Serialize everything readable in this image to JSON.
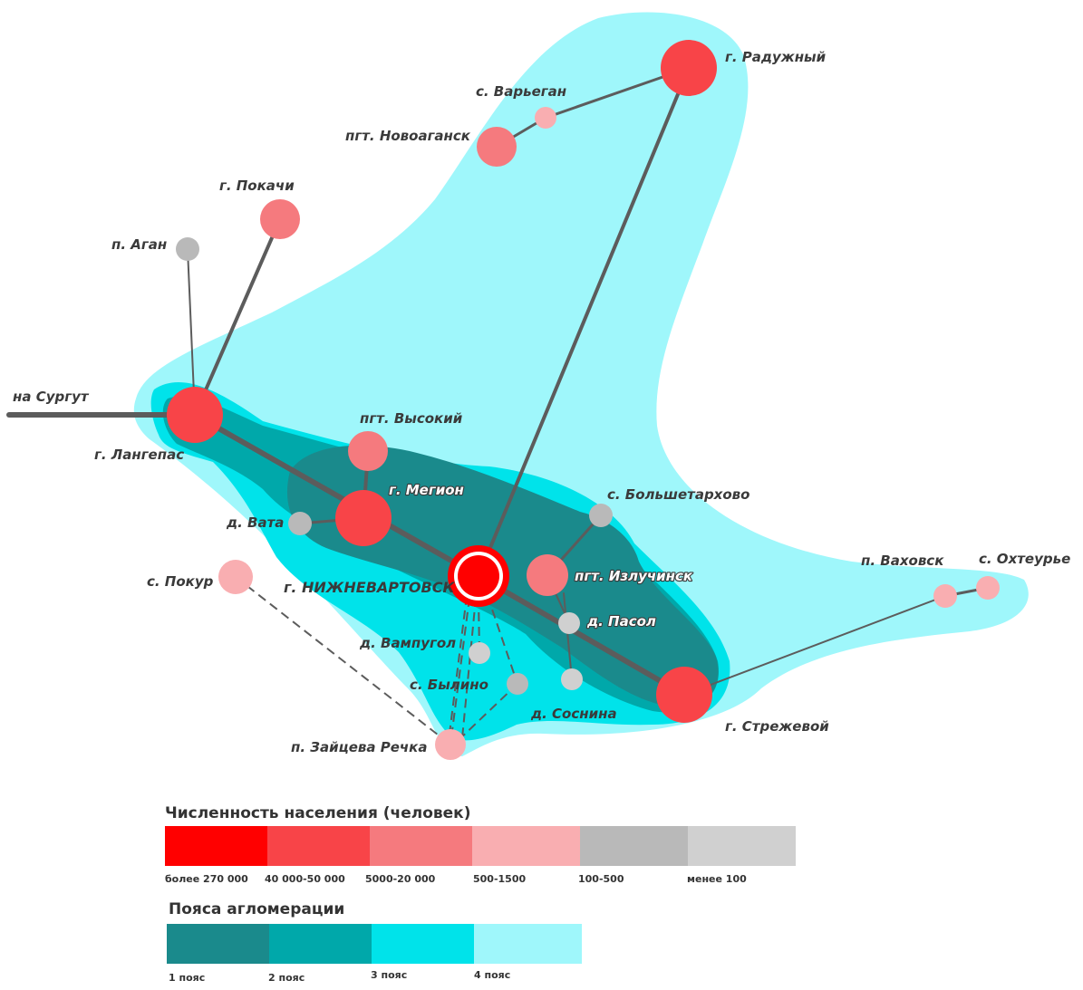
{
  "map": {
    "road_label": "на Сургут",
    "colors": {
      "zone1": "#1a8a8c",
      "zone2": "#00a8aa",
      "zone3": "#00e3ea",
      "zone4": "#9ff7fb",
      "pop1": "#ff0000",
      "pop2": "#f84448",
      "pop3": "#f57a7e",
      "pop4": "#f9aeb1",
      "pop5": "#b9b9b9",
      "pop6": "#d0d0d0",
      "road": "#5c5c5c"
    },
    "settlements": [
      {
        "id": "raduzhny",
        "name": "г. Радужный",
        "class": 2
      },
      {
        "id": "varyegan",
        "name": "с. Варьеган",
        "class": 4
      },
      {
        "id": "novoagansk",
        "name": "пгт. Новоаганск",
        "class": 3
      },
      {
        "id": "pokachi",
        "name": "г. Покачи",
        "class": 3
      },
      {
        "id": "agan",
        "name": "п. Аган",
        "class": 5
      },
      {
        "id": "langepas",
        "name": "г. Лангепас",
        "class": 2
      },
      {
        "id": "vysoky",
        "name": "пгт. Высокий",
        "class": 3
      },
      {
        "id": "megion",
        "name": "г. Мегион",
        "class": 2
      },
      {
        "id": "vata",
        "name": "д. Вата",
        "class": 5
      },
      {
        "id": "bolshetarkhovo",
        "name": "с. Большетархово",
        "class": 5
      },
      {
        "id": "pokur",
        "name": "с. Покур",
        "class": 4
      },
      {
        "id": "nizhnevartovsk",
        "name": "г. НИЖНЕВАРТОВСК",
        "class": 1
      },
      {
        "id": "izluchinsk",
        "name": "пгт. Излучинск",
        "class": 3
      },
      {
        "id": "pasol",
        "name": "д. Пасол",
        "class": 6
      },
      {
        "id": "vampugol",
        "name": "д. Вампугол",
        "class": 6
      },
      {
        "id": "bylino",
        "name": "с. Былино",
        "class": 5
      },
      {
        "id": "sosnina",
        "name": "д. Соснина",
        "class": 6
      },
      {
        "id": "zaitseva",
        "name": "п. Зайцева Речка",
        "class": 4
      },
      {
        "id": "strezhevoy",
        "name": "г. Стрежевой",
        "class": 2
      },
      {
        "id": "vakhovsk",
        "name": "п. Ваховск",
        "class": 4
      },
      {
        "id": "okhteurye",
        "name": "с. Охтеурье",
        "class": 4
      }
    ]
  },
  "legend": {
    "population": {
      "title": "Численность населения (человек)",
      "classes": [
        {
          "label": "более 270 000",
          "color": "#ff0000"
        },
        {
          "label": "40 000-50 000",
          "color": "#f84448"
        },
        {
          "label": "5000-20 000",
          "color": "#f57a7e"
        },
        {
          "label": "500-1500",
          "color": "#f9aeb1"
        },
        {
          "label": "100-500",
          "color": "#b9b9b9"
        },
        {
          "label": "менее 100",
          "color": "#d0d0d0"
        }
      ]
    },
    "zones": {
      "title": "Пояса агломерации",
      "classes": [
        {
          "label": "1 пояс",
          "color": "#1a8a8c"
        },
        {
          "label": "2 пояс",
          "color": "#00a8aa"
        },
        {
          "label": "3 пояс",
          "color": "#00e3ea"
        },
        {
          "label": "4 пояс",
          "color": "#9ff7fb"
        }
      ]
    }
  }
}
